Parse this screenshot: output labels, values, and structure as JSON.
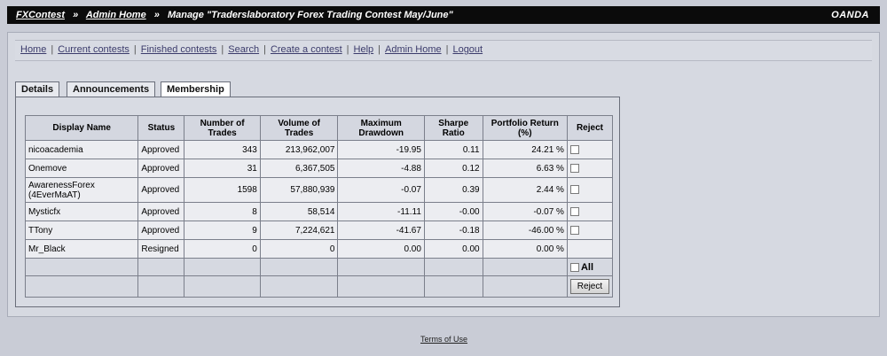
{
  "header": {
    "crumb_home": "FXContest",
    "crumb_admin": "Admin Home",
    "title": "Manage \"Traderslaboratory Forex Trading Contest May/June\"",
    "separator": "»",
    "brand": "OANDA"
  },
  "nav": {
    "items": [
      "Home",
      "Current contests",
      "Finished contests",
      "Search",
      "Create a contest",
      "Help",
      "Admin Home",
      "Logout"
    ],
    "sep": "|"
  },
  "tabs": [
    "Details",
    "Announcements",
    "Membership"
  ],
  "active_tab": "Membership",
  "table": {
    "headers": [
      "Display Name",
      "Status",
      "Number of Trades",
      "Volume of Trades",
      "Maximum Drawdown",
      "Sharpe Ratio",
      "Portfolio Return (%)",
      "Reject"
    ],
    "rows": [
      {
        "name": "nicoacademia",
        "status": "Approved",
        "trades": "343",
        "volume": "213,962,007",
        "drawdown": "-19.95",
        "sharpe": "0.11",
        "return": "24.21 %"
      },
      {
        "name": "Onemove",
        "status": "Approved",
        "trades": "31",
        "volume": "6,367,505",
        "drawdown": "-4.88",
        "sharpe": "0.12",
        "return": "6.63 %"
      },
      {
        "name": "AwarenessForex (4EverMaAT)",
        "status": "Approved",
        "trades": "1598",
        "volume": "57,880,939",
        "drawdown": "-0.07",
        "sharpe": "0.39",
        "return": "2.44 %"
      },
      {
        "name": "Mysticfx",
        "status": "Approved",
        "trades": "8",
        "volume": "58,514",
        "drawdown": "-11.11",
        "sharpe": "-0.00",
        "return": "-0.07 %"
      },
      {
        "name": "TTony",
        "status": "Approved",
        "trades": "9",
        "volume": "7,224,621",
        "drawdown": "-41.67",
        "sharpe": "-0.18",
        "return": "-46.00 %"
      },
      {
        "name": "Mr_Black",
        "status": "Resigned",
        "trades": "0",
        "volume": "0",
        "drawdown": "0.00",
        "sharpe": "0.00",
        "return": "0.00 %"
      }
    ],
    "all_label": "All",
    "reject_button": "Reject"
  },
  "footer": {
    "terms": "Terms of Use"
  }
}
